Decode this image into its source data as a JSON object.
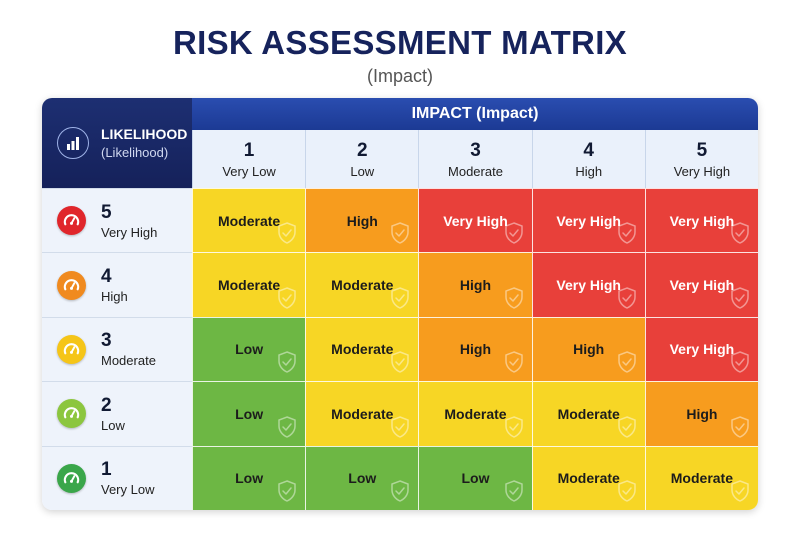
{
  "title": "RISK ASSESSMENT MATRIX",
  "subtitle": "(Impact)",
  "corner": {
    "title": "LIKELIHOOD",
    "subtitle": "(Likelihood)",
    "icon": "bar-chart-icon"
  },
  "impact_header": "IMPACT (Impact)",
  "columns": [
    {
      "num": "1",
      "label": "Very Low"
    },
    {
      "num": "2",
      "label": "Low"
    },
    {
      "num": "3",
      "label": "Moderate"
    },
    {
      "num": "4",
      "label": "High"
    },
    {
      "num": "5",
      "label": "Very High"
    }
  ],
  "rows": [
    {
      "num": "5",
      "label": "Very High",
      "gauge_color": "#e0262b",
      "cells": [
        "Moderate",
        "High",
        "Very High",
        "Very High",
        "Very High"
      ]
    },
    {
      "num": "4",
      "label": "High",
      "gauge_color": "#f08a1f",
      "cells": [
        "Moderate",
        "Moderate",
        "High",
        "Very High",
        "Very High"
      ]
    },
    {
      "num": "3",
      "label": "Moderate",
      "gauge_color": "#f5c518",
      "cells": [
        "Low",
        "Moderate",
        "High",
        "High",
        "Very High"
      ]
    },
    {
      "num": "2",
      "label": "Low",
      "gauge_color": "#8cc63f",
      "cells": [
        "Low",
        "Moderate",
        "Moderate",
        "Moderate",
        "High"
      ]
    },
    {
      "num": "1",
      "label": "Very Low",
      "gauge_color": "#3aa64a",
      "cells": [
        "Low",
        "Low",
        "Low",
        "Moderate",
        "Moderate"
      ]
    }
  ],
  "level_colors": {
    "Low": "#6db744",
    "Moderate": "#f7d625",
    "High": "#f79c1e",
    "Very High": "#e8403a"
  }
}
